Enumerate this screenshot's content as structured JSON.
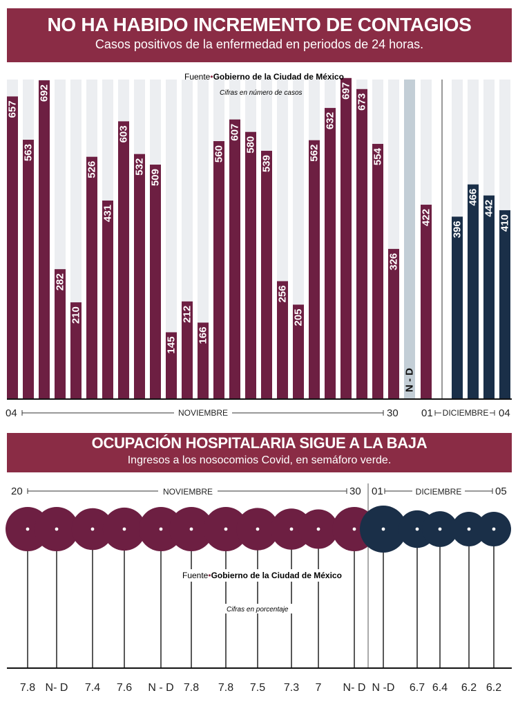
{
  "colors": {
    "banner": "#8a2c45",
    "bar_nov": "#6d1f42",
    "bar_dec": "#1a2f48",
    "track": "#eceef1",
    "track_nd": "#c3ced6",
    "circle_nov": "#6d1f42",
    "circle_dec": "#1a2f48"
  },
  "header1": {
    "title": "NO HA HABIDO INCREMENTO DE CONTAGIOS",
    "subtitle": "Casos positivos de la enfermedad en periodos de 24 horas."
  },
  "header2": {
    "title": "OCUPACIÓN HOSPITALARIA SIGUE A LA BAJA",
    "subtitle": "Ingresos a los nosocomios Covid, en semáforo verde."
  },
  "chart_data": [
    {
      "type": "bar",
      "title": "NO HA HABIDO INCREMENTO DE CONTAGIOS",
      "subtitle": "Casos positivos de la enfermedad en periodos de 24 horas.",
      "source_label": "Fuente",
      "source_name": "Gobierno de la Ciudad de México",
      "note": "Cifras en número de casos",
      "ylim": [
        0,
        700
      ],
      "series": [
        {
          "name": "Noviembre",
          "values": [
            657,
            563,
            692,
            282,
            210,
            526,
            431,
            603,
            532,
            509,
            145,
            212,
            166,
            560,
            607,
            580,
            539,
            256,
            205,
            562,
            632,
            697,
            673,
            554,
            326
          ]
        },
        {
          "name": "N-D",
          "label": "N - D",
          "values": [
            null
          ]
        },
        {
          "name": "Diciembre",
          "values": [
            422,
            396,
            466,
            442,
            410
          ]
        }
      ],
      "axis": {
        "nov_start": "04",
        "nov_label": "NOVIEMBRE",
        "nov_end": "30",
        "dec_start": "01",
        "dec_label": "DICIEMBRE",
        "dec_end": "04"
      }
    },
    {
      "type": "bubble",
      "title": "OCUPACIÓN HOSPITALARIA SIGUE A LA BAJA",
      "subtitle": "Ingresos a los nosocomios Covid, en semáforo verde.",
      "source_label": "Fuente",
      "source_name": "Gobierno de la Ciudad de México",
      "note": "Cifras en porcentaje",
      "labels": [
        "7.8",
        "N- D",
        "7.4",
        "7.6",
        "N - D",
        "7.8",
        "7.8",
        "7.5",
        "7.3",
        "7",
        "N- D",
        "N -D",
        "6.7",
        "6.4",
        "6.2",
        "6.2"
      ],
      "values": [
        7.8,
        null,
        7.4,
        7.6,
        null,
        7.8,
        7.8,
        7.5,
        7.3,
        7.0,
        null,
        null,
        6.7,
        6.4,
        6.2,
        6.2
      ],
      "month": [
        "nov",
        "nov",
        "nov",
        "nov",
        "nov",
        "nov",
        "nov",
        "nov",
        "nov",
        "nov",
        "nov",
        "dec",
        "dec",
        "dec",
        "dec",
        "dec"
      ],
      "axis": {
        "nov_start": "20",
        "nov_label": "NOVIEMBRE",
        "nov_end": "30",
        "dec_start": "01",
        "dec_label": "DICIEMBRE",
        "dec_end": "05"
      }
    }
  ]
}
